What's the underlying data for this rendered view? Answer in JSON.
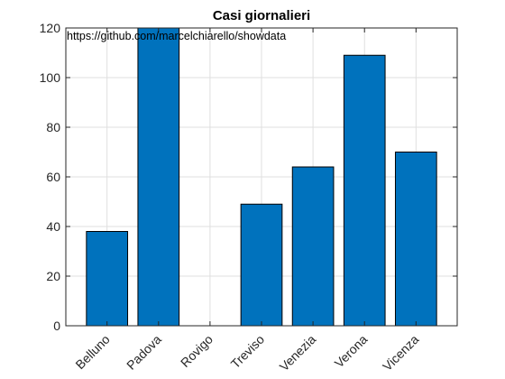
{
  "chart_data": {
    "type": "bar",
    "title": "Casi giornalieri",
    "annotation": "https://github.com/marcelchiarello/showdata",
    "categories": [
      "Belluno",
      "Padova",
      "Rovigo",
      "Treviso",
      "Venezia",
      "Verona",
      "Vicenza"
    ],
    "values": [
      38,
      120,
      0,
      49,
      64,
      109,
      70
    ],
    "xlabel": "",
    "ylabel": "",
    "ylim": [
      0,
      120
    ],
    "yticks": [
      0,
      20,
      40,
      60,
      80,
      100,
      120
    ],
    "grid": true,
    "bar_color": "#0072BD",
    "bar_edge_color": "#000000"
  }
}
